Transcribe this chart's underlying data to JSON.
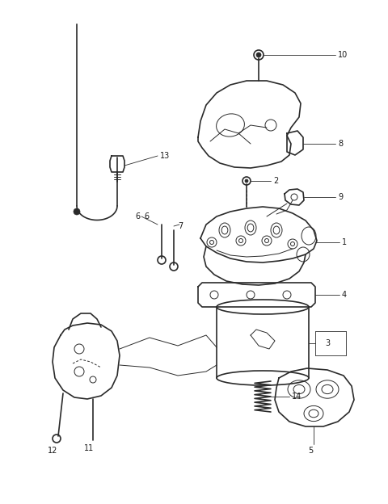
{
  "bg_color": "#ffffff",
  "line_color": "#2a2a2a",
  "text_color": "#1a1a1a",
  "figsize": [
    4.8,
    6.24
  ],
  "dpi": 100,
  "label_fontsize": 7.0,
  "lw_main": 1.2,
  "lw_thin": 0.7,
  "lw_label": 0.6
}
